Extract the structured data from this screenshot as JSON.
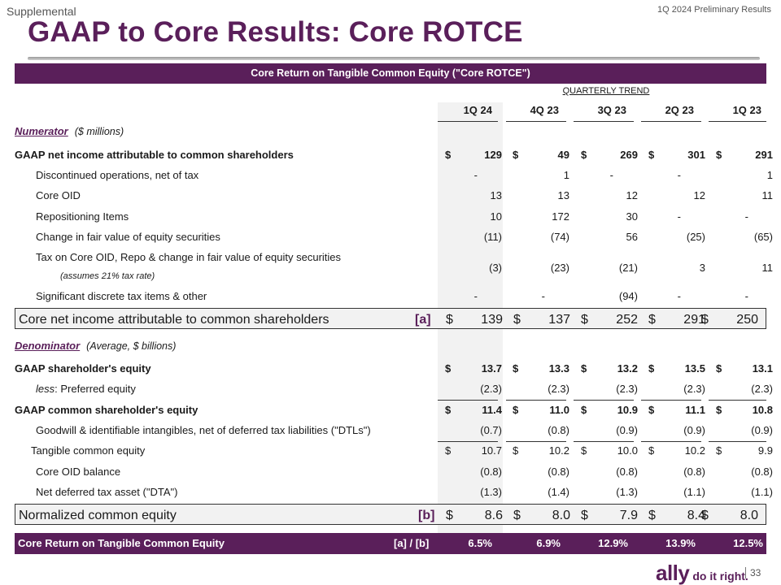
{
  "header": {
    "section": "Supplemental",
    "period": "1Q 2024 Preliminary Results",
    "title": "GAAP to Core Results: Core ROTCE"
  },
  "table_title": "Core Return on Tangible Common Equity (\"Core ROTCE\")",
  "trend_label": "QUARTERLY TREND",
  "columns": [
    "1Q 24",
    "4Q 23",
    "3Q 23",
    "2Q 23",
    "1Q 23"
  ],
  "numerator": {
    "label": "Numerator",
    "note": "($ millions)",
    "gaap_net_income": {
      "label": "GAAP net income attributable to common shareholders",
      "values": [
        "129",
        "49",
        "269",
        "301",
        "291"
      ]
    },
    "discontinued": {
      "label": "Discontinued operations, net of tax",
      "values": [
        "-",
        "1",
        "-",
        "-",
        "1"
      ]
    },
    "core_oid": {
      "label": "Core OID",
      "values": [
        "13",
        "13",
        "12",
        "12",
        "11"
      ]
    },
    "repositioning": {
      "label": "Repositioning Items",
      "values": [
        "10",
        "172",
        "30",
        "-",
        "-"
      ]
    },
    "fair_value": {
      "label": "Change in fair value of equity securities",
      "values": [
        "(11)",
        "(74)",
        "56",
        "(25)",
        "(65)"
      ]
    },
    "tax": {
      "label": "Tax on Core OID, Repo & change in fair value of equity securities",
      "note": "(assumes 21% tax rate)",
      "values": [
        "(3)",
        "(23)",
        "(21)",
        "3",
        "11"
      ]
    },
    "discrete_tax": {
      "label": "Significant discrete tax items & other",
      "values": [
        "-",
        "-",
        "(94)",
        "-",
        "-"
      ]
    },
    "core_net_income": {
      "label": "Core net income attributable to common shareholders",
      "tag": "[a]",
      "values": [
        "139",
        "137",
        "252",
        "291",
        "250"
      ]
    }
  },
  "denominator": {
    "label": "Denominator",
    "note": "(Average, $ billions)",
    "gaap_equity": {
      "label": "GAAP shareholder's equity",
      "values": [
        "13.7",
        "13.3",
        "13.2",
        "13.5",
        "13.1"
      ]
    },
    "preferred": {
      "prefix": "less",
      "label": ":  Preferred equity",
      "values": [
        "(2.3)",
        "(2.3)",
        "(2.3)",
        "(2.3)",
        "(2.3)"
      ]
    },
    "common_equity": {
      "label": "GAAP common shareholder's equity",
      "values": [
        "11.4",
        "11.0",
        "10.9",
        "11.1",
        "10.8"
      ]
    },
    "goodwill": {
      "label": "Goodwill & identifiable intangibles, net of deferred tax liabilities (\"DTLs\")",
      "values": [
        "(0.7)",
        "(0.8)",
        "(0.9)",
        "(0.9)",
        "(0.9)"
      ]
    },
    "tangible": {
      "label": "Tangible common equity",
      "values": [
        "10.7",
        "10.2",
        "10.0",
        "10.2",
        "9.9"
      ]
    },
    "core_oid_balance": {
      "label": "Core OID balance",
      "values": [
        "(0.8)",
        "(0.8)",
        "(0.8)",
        "(0.8)",
        "(0.8)"
      ]
    },
    "dta": {
      "label": "Net deferred tax asset (\"DTA\")",
      "values": [
        "(1.3)",
        "(1.4)",
        "(1.3)",
        "(1.1)",
        "(1.1)"
      ]
    },
    "normalized": {
      "label": "Normalized common equity",
      "tag": "[b]",
      "values": [
        "8.6",
        "8.0",
        "7.9",
        "8.4",
        "8.0"
      ]
    }
  },
  "result": {
    "label": "Core Return on Tangible Common Equity",
    "tag": "[a] / [b]",
    "values": [
      "6.5%",
      "6.9%",
      "12.9%",
      "13.9%",
      "12.5%"
    ]
  },
  "currency_symbol": "$",
  "logo": {
    "brand": "ally",
    "tagline": "do it right."
  },
  "page_number": "33"
}
